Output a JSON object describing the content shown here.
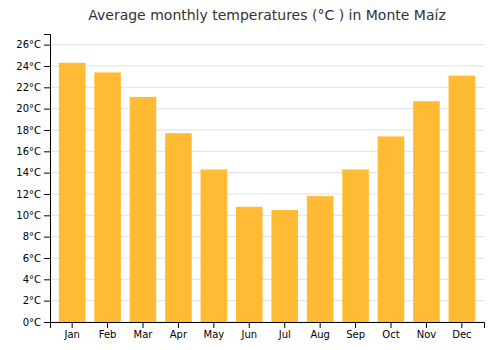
{
  "chart_data": {
    "type": "bar",
    "title": "Average monthly temperatures (°C ) in Monte Maíz",
    "categories": [
      "Jan",
      "Feb",
      "Mar",
      "Apr",
      "May",
      "Jun",
      "Jul",
      "Aug",
      "Sep",
      "Oct",
      "Nov",
      "Dec"
    ],
    "values": [
      24.3,
      23.4,
      21.1,
      17.7,
      14.3,
      10.8,
      10.5,
      11.8,
      14.3,
      17.4,
      20.7,
      23.1
    ],
    "color": "#FFBB33",
    "ylim": [
      0,
      27
    ],
    "yticks": [
      {
        "value": 0,
        "label": "0°C"
      },
      {
        "value": 2,
        "label": "2°C"
      },
      {
        "value": 4,
        "label": "4°C"
      },
      {
        "value": 6,
        "label": "6°C"
      },
      {
        "value": 8,
        "label": "8°C"
      },
      {
        "value": 10,
        "label": "10°C"
      },
      {
        "value": 12,
        "label": "12°C"
      },
      {
        "value": 14,
        "label": "14°C"
      },
      {
        "value": 16,
        "label": "16°C"
      },
      {
        "value": 18,
        "label": "18°C"
      },
      {
        "value": 20,
        "label": "20°C"
      },
      {
        "value": 22,
        "label": "22°C"
      },
      {
        "value": 24,
        "label": "24°C"
      },
      {
        "value": 26,
        "label": "26°C"
      }
    ],
    "grid": true
  }
}
